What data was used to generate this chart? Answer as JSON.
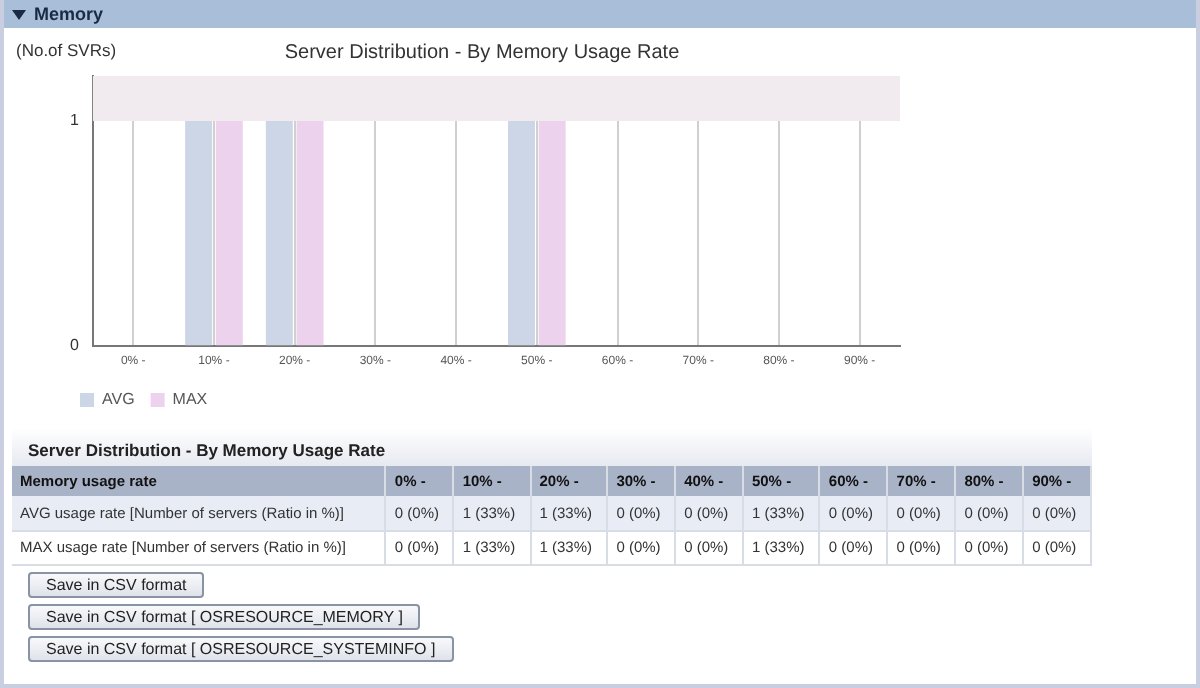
{
  "chart_data": {
    "type": "bar",
    "title": "Server Distribution - By Memory Usage Rate",
    "ylabel": "(No.of SVRs)",
    "categories": [
      "0% -",
      "10% -",
      "20% -",
      "30% -",
      "40% -",
      "50% -",
      "60% -",
      "70% -",
      "80% -",
      "90% -"
    ],
    "series": [
      {
        "name": "AVG",
        "color": "#ccd6e6",
        "values": [
          0,
          1,
          1,
          0,
          0,
          1,
          0,
          0,
          0,
          0
        ]
      },
      {
        "name": "MAX",
        "color": "#ecd2ec",
        "values": [
          0,
          1,
          1,
          0,
          0,
          1,
          0,
          0,
          0,
          0
        ]
      }
    ],
    "ylim": [
      0,
      1.2
    ],
    "yticks": [
      0,
      1
    ],
    "grid": "x",
    "legend": "bottom left",
    "bands": [
      {
        "axis": "y",
        "from": 1,
        "to": 1.2,
        "color": "#f1eaef"
      }
    ],
    "annotations": [
      "Memory",
      "Server Distribution - By Memory Usage Rate",
      "Memory usage rate",
      "AVG usage rate [Number of servers (Ratio in %)]",
      "0 (0%)",
      "1 (33%)",
      "1 (33%)",
      "0 (0%)",
      "0 (0%)",
      "1 (33%)",
      "0 (0%)",
      "0 (0%)",
      "0 (0%)",
      "0 (0%)",
      "MAX usage rate [Number of servers (Ratio in %)]",
      "0 (0%)",
      "1 (33%)",
      "1 (33%)",
      "0 (0%)",
      "0 (0%)",
      "1 (33%)",
      "0 (0%)",
      "0 (0%)",
      "0 (0%)",
      "0 (0%)",
      "Save in CSV format",
      "Save in CSV format [ OSRESOURCE_MEMORY ]",
      "Save in CSV format [ OSRESOURCE_SYSTEMINFO ]"
    ]
  }
}
